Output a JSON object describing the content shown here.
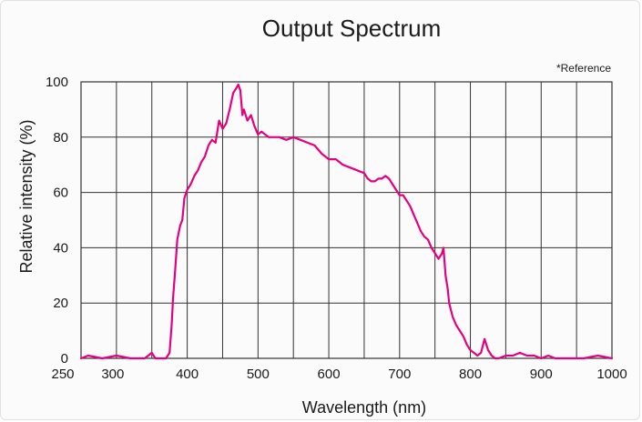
{
  "chart_data": {
    "type": "line",
    "title": "Output Spectrum",
    "xlabel": "Wavelength (nm)",
    "ylabel": "Relative intensity (%)",
    "annotation": "*Reference",
    "xlim": [
      250,
      1000
    ],
    "ylim": [
      0,
      100
    ],
    "x_ticks": [
      250,
      300,
      400,
      500,
      600,
      700,
      800,
      900,
      1000
    ],
    "y_ticks": [
      0,
      20,
      40,
      60,
      80,
      100
    ],
    "grid": true,
    "line_color": "#e6007e",
    "series": [
      {
        "x": [
          250,
          260,
          280,
          300,
          320,
          340,
          345,
          350,
          355,
          360,
          365,
          370,
          375,
          378,
          380,
          383,
          386,
          390,
          393,
          396,
          400,
          405,
          410,
          415,
          420,
          425,
          430,
          435,
          440,
          445,
          450,
          455,
          460,
          465,
          470,
          472,
          475,
          478,
          480,
          485,
          490,
          495,
          500,
          505,
          510,
          515,
          520,
          530,
          540,
          550,
          560,
          570,
          580,
          590,
          600,
          610,
          620,
          630,
          640,
          650,
          655,
          660,
          665,
          670,
          675,
          680,
          685,
          690,
          695,
          700,
          705,
          710,
          715,
          720,
          725,
          730,
          735,
          740,
          745,
          750,
          755,
          760,
          762,
          765,
          768,
          770,
          775,
          780,
          785,
          790,
          795,
          800,
          805,
          810,
          815,
          820,
          825,
          830,
          835,
          840,
          850,
          860,
          870,
          880,
          890,
          900,
          910,
          920,
          940,
          960,
          980,
          1000
        ],
        "values": [
          0,
          1,
          0,
          1,
          0,
          0,
          1,
          2,
          0,
          0,
          0,
          0,
          2,
          12,
          22,
          32,
          43,
          48,
          50,
          58,
          61,
          63,
          66,
          68,
          71,
          73,
          77,
          79,
          78,
          86,
          83,
          85,
          90,
          96,
          98,
          99,
          97,
          88,
          90,
          86,
          88,
          84,
          81,
          82,
          81,
          80,
          80,
          80,
          79,
          80,
          79,
          78,
          77,
          74,
          72,
          72,
          70,
          69,
          68,
          67,
          65,
          64,
          64,
          65,
          65,
          66,
          65,
          63,
          61,
          59,
          59,
          57,
          55,
          52,
          49,
          46,
          44,
          43,
          40,
          38,
          36,
          38,
          40,
          30,
          25,
          20,
          15,
          12,
          10,
          8,
          5,
          3,
          2,
          1,
          2,
          7,
          3,
          1,
          0,
          0,
          1,
          1,
          2,
          1,
          1,
          0,
          1,
          0,
          0,
          0,
          1,
          0
        ]
      }
    ]
  }
}
